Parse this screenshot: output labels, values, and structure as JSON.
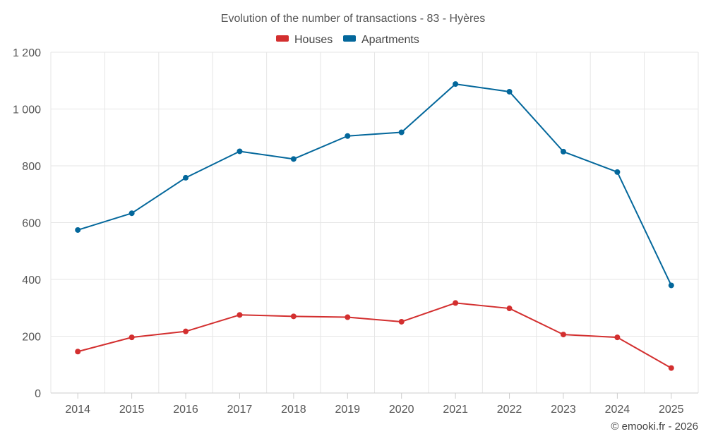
{
  "chart_data": {
    "type": "line",
    "title": "Evolution of the number of transactions - 83 - Hyères",
    "categories": [
      "2014",
      "2015",
      "2016",
      "2017",
      "2018",
      "2019",
      "2020",
      "2021",
      "2022",
      "2023",
      "2024",
      "2025"
    ],
    "series": [
      {
        "name": "Houses",
        "color": "#d32f2f",
        "values": [
          146,
          196,
          217,
          275,
          270,
          267,
          251,
          317,
          298,
          206,
          196,
          88
        ]
      },
      {
        "name": "Apartments",
        "color": "#03679b",
        "values": [
          574,
          633,
          758,
          851,
          824,
          905,
          918,
          1088,
          1061,
          850,
          778,
          379
        ]
      }
    ],
    "ylim": [
      0,
      1200
    ],
    "yticks": [
      0,
      200,
      400,
      600,
      800,
      1000,
      1200
    ],
    "ytick_labels": [
      "0",
      "200",
      "400",
      "600",
      "800",
      "1 000",
      "1 200"
    ],
    "xlabel": "",
    "ylabel": "",
    "grid": true,
    "legend_position": "top-center"
  },
  "credit": "© emooki.fr - 2026",
  "colors": {
    "grid": "#e6e6e6",
    "axis": "#cccccc"
  }
}
